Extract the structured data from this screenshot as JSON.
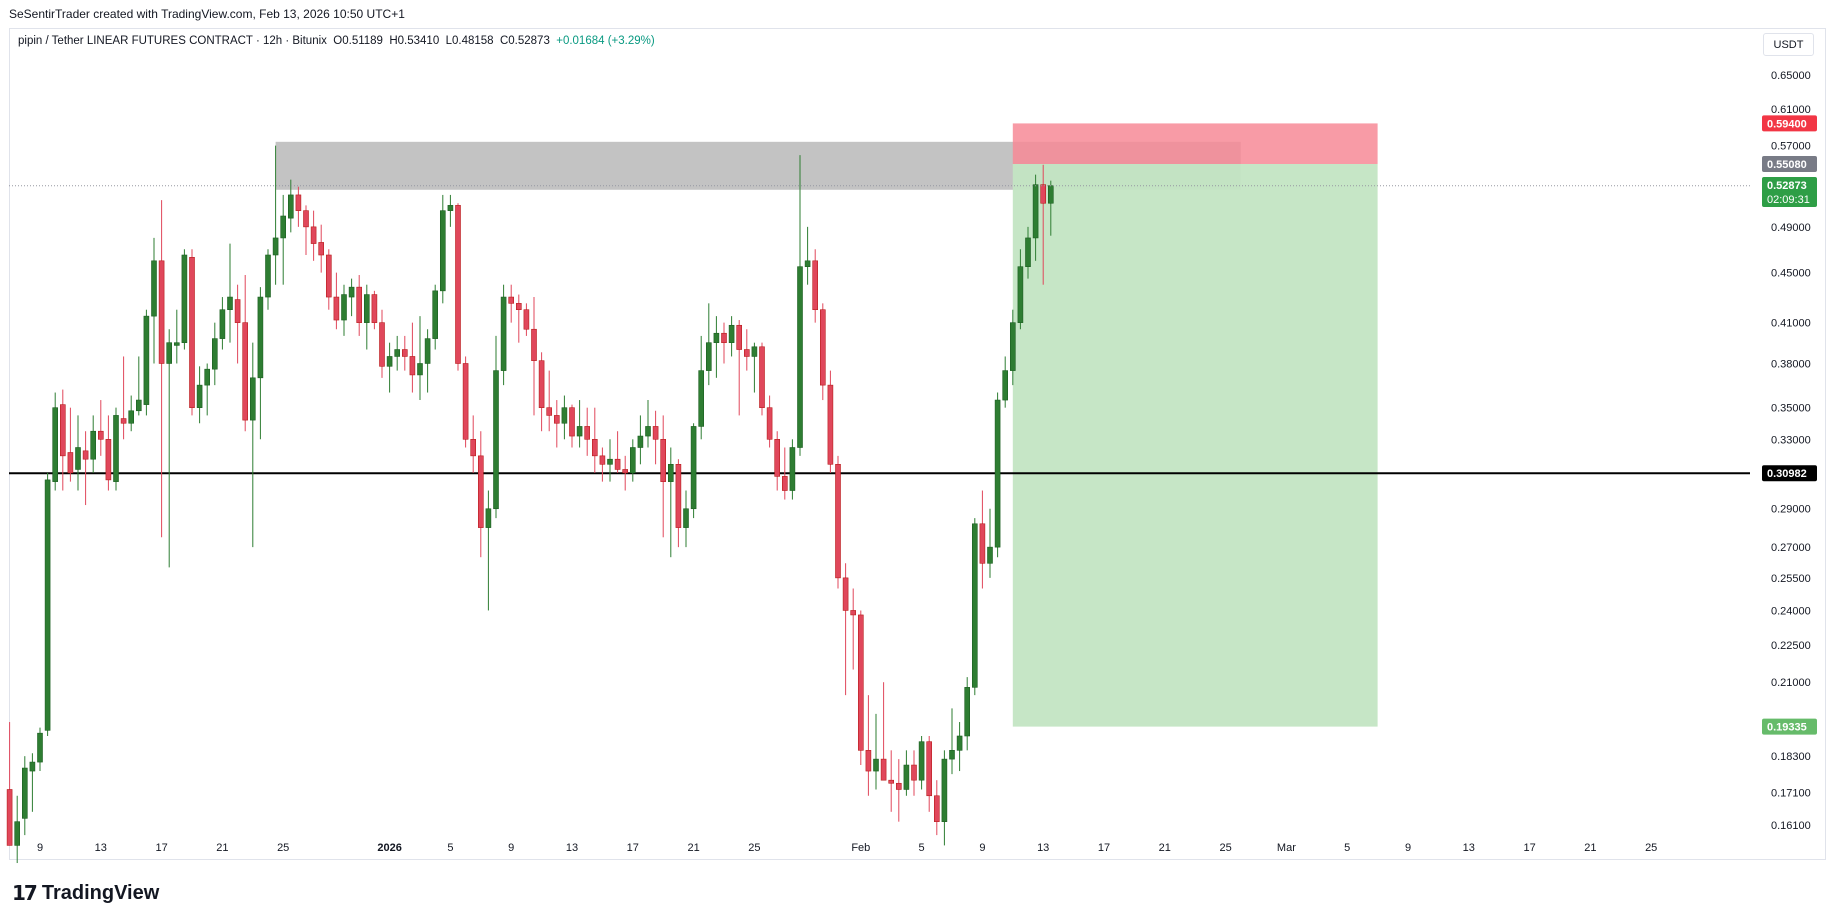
{
  "header": {
    "attribution": "SeSentirTrader created with TradingView.com, Feb 13, 2026 10:50 UTC+1"
  },
  "legend": {
    "symbol": "pipin / Tether LINEAR FUTURES CONTRACT · 12h · Bitunix",
    "open": "O0.51189",
    "high": "H0.53410",
    "low": "L0.48158",
    "close": "C0.52873",
    "change": "+0.01684 (+3.29%)"
  },
  "currency": "USDT",
  "footer": {
    "logo_mark": "17",
    "logo_name": "TradingView"
  },
  "colors": {
    "up": "#089981",
    "down": "#f23645",
    "up_body": "#2e7d32",
    "down_body": "#e0475b",
    "profit_zone": "#c3e5c3",
    "loss_zone": "#f78a96",
    "supply_zone": "#b8b8b8"
  },
  "chart_data": {
    "type": "candlestick",
    "interval": "12h",
    "scale": "log",
    "y_ticks": [
      "0.65000",
      "0.61000",
      "0.57000",
      "0.49000",
      "0.45000",
      "0.41000",
      "0.38000",
      "0.35000",
      "0.33000",
      "0.29000",
      "0.27000",
      "0.25500",
      "0.24000",
      "0.22500",
      "0.21000",
      "0.18300",
      "0.17100",
      "0.16100"
    ],
    "x_ticks": [
      {
        "label": "9",
        "date": "2025-12-09"
      },
      {
        "label": "13",
        "date": "2025-12-13"
      },
      {
        "label": "17",
        "date": "2025-12-17"
      },
      {
        "label": "21",
        "date": "2025-12-21"
      },
      {
        "label": "25",
        "date": "2025-12-25"
      },
      {
        "label": "2026",
        "date": "2026-01-01",
        "bold": true
      },
      {
        "label": "5",
        "date": "2026-01-05"
      },
      {
        "label": "9",
        "date": "2026-01-09"
      },
      {
        "label": "13",
        "date": "2026-01-13"
      },
      {
        "label": "17",
        "date": "2026-01-17"
      },
      {
        "label": "21",
        "date": "2026-01-21"
      },
      {
        "label": "25",
        "date": "2026-01-25"
      },
      {
        "label": "Feb",
        "date": "2026-02-01"
      },
      {
        "label": "5",
        "date": "2026-02-05"
      },
      {
        "label": "9",
        "date": "2026-02-09"
      },
      {
        "label": "13",
        "date": "2026-02-13"
      },
      {
        "label": "17",
        "date": "2026-02-17"
      },
      {
        "label": "21",
        "date": "2026-02-21"
      },
      {
        "label": "25",
        "date": "2026-02-25"
      },
      {
        "label": "Mar",
        "date": "2026-03-01"
      },
      {
        "label": "5",
        "date": "2026-03-05"
      },
      {
        "label": "9",
        "date": "2026-03-09"
      },
      {
        "label": "13",
        "date": "2026-03-13"
      },
      {
        "label": "17",
        "date": "2026-03-17"
      },
      {
        "label": "21",
        "date": "2026-03-21"
      },
      {
        "label": "25",
        "date": "2026-03-25"
      }
    ],
    "first_candle": "2025-12-07 00:00",
    "candles": [
      [
        0.172,
        0.195,
        0.155,
        0.155
      ],
      [
        0.155,
        0.17,
        0.15,
        0.162
      ],
      [
        0.163,
        0.183,
        0.158,
        0.179
      ],
      [
        0.178,
        0.184,
        0.165,
        0.181
      ],
      [
        0.181,
        0.193,
        0.178,
        0.191
      ],
      [
        0.192,
        0.31,
        0.19,
        0.306
      ],
      [
        0.305,
        0.36,
        0.3,
        0.35
      ],
      [
        0.352,
        0.362,
        0.3,
        0.32
      ],
      [
        0.322,
        0.35,
        0.305,
        0.31
      ],
      [
        0.312,
        0.345,
        0.3,
        0.325
      ],
      [
        0.323,
        0.335,
        0.292,
        0.318
      ],
      [
        0.318,
        0.345,
        0.31,
        0.335
      ],
      [
        0.335,
        0.355,
        0.32,
        0.33
      ],
      [
        0.33,
        0.345,
        0.3,
        0.306
      ],
      [
        0.305,
        0.35,
        0.3,
        0.345
      ],
      [
        0.343,
        0.385,
        0.33,
        0.34
      ],
      [
        0.34,
        0.358,
        0.335,
        0.348
      ],
      [
        0.348,
        0.385,
        0.345,
        0.355
      ],
      [
        0.352,
        0.42,
        0.345,
        0.415
      ],
      [
        0.415,
        0.48,
        0.38,
        0.46
      ],
      [
        0.46,
        0.515,
        0.275,
        0.38
      ],
      [
        0.38,
        0.405,
        0.26,
        0.395
      ],
      [
        0.393,
        0.42,
        0.38,
        0.395
      ],
      [
        0.395,
        0.47,
        0.39,
        0.465
      ],
      [
        0.463,
        0.47,
        0.345,
        0.35
      ],
      [
        0.35,
        0.378,
        0.34,
        0.365
      ],
      [
        0.365,
        0.38,
        0.345,
        0.376
      ],
      [
        0.376,
        0.41,
        0.365,
        0.398
      ],
      [
        0.398,
        0.43,
        0.39,
        0.42
      ],
      [
        0.42,
        0.475,
        0.395,
        0.43
      ],
      [
        0.428,
        0.44,
        0.38,
        0.41
      ],
      [
        0.41,
        0.448,
        0.335,
        0.342
      ],
      [
        0.342,
        0.395,
        0.27,
        0.37
      ],
      [
        0.37,
        0.438,
        0.33,
        0.43
      ],
      [
        0.43,
        0.47,
        0.42,
        0.465
      ],
      [
        0.465,
        0.57,
        0.44,
        0.48
      ],
      [
        0.48,
        0.52,
        0.44,
        0.5
      ],
      [
        0.498,
        0.535,
        0.485,
        0.52
      ],
      [
        0.52,
        0.528,
        0.49,
        0.505
      ],
      [
        0.505,
        0.51,
        0.465,
        0.49
      ],
      [
        0.49,
        0.505,
        0.46,
        0.475
      ],
      [
        0.476,
        0.492,
        0.45,
        0.465
      ],
      [
        0.465,
        0.47,
        0.42,
        0.43
      ],
      [
        0.43,
        0.45,
        0.405,
        0.412
      ],
      [
        0.412,
        0.44,
        0.4,
        0.432
      ],
      [
        0.43,
        0.445,
        0.415,
        0.438
      ],
      [
        0.438,
        0.448,
        0.4,
        0.41
      ],
      [
        0.41,
        0.44,
        0.39,
        0.432
      ],
      [
        0.432,
        0.435,
        0.405,
        0.41
      ],
      [
        0.41,
        0.42,
        0.37,
        0.378
      ],
      [
        0.378,
        0.395,
        0.36,
        0.385
      ],
      [
        0.385,
        0.4,
        0.375,
        0.39
      ],
      [
        0.39,
        0.4,
        0.375,
        0.385
      ],
      [
        0.385,
        0.41,
        0.36,
        0.372
      ],
      [
        0.372,
        0.415,
        0.355,
        0.38
      ],
      [
        0.38,
        0.405,
        0.36,
        0.398
      ],
      [
        0.398,
        0.44,
        0.39,
        0.435
      ],
      [
        0.435,
        0.52,
        0.425,
        0.505
      ],
      [
        0.505,
        0.52,
        0.49,
        0.51
      ],
      [
        0.51,
        0.512,
        0.375,
        0.38
      ],
      [
        0.38,
        0.385,
        0.325,
        0.33
      ],
      [
        0.33,
        0.345,
        0.31,
        0.32
      ],
      [
        0.32,
        0.335,
        0.265,
        0.28
      ],
      [
        0.28,
        0.3,
        0.24,
        0.29
      ],
      [
        0.29,
        0.4,
        0.285,
        0.375
      ],
      [
        0.375,
        0.44,
        0.365,
        0.43
      ],
      [
        0.43,
        0.44,
        0.41,
        0.425
      ],
      [
        0.425,
        0.432,
        0.395,
        0.42
      ],
      [
        0.42,
        0.425,
        0.4,
        0.405
      ],
      [
        0.405,
        0.43,
        0.345,
        0.382
      ],
      [
        0.382,
        0.388,
        0.335,
        0.35
      ],
      [
        0.35,
        0.375,
        0.335,
        0.345
      ],
      [
        0.345,
        0.355,
        0.325,
        0.34
      ],
      [
        0.34,
        0.358,
        0.33,
        0.35
      ],
      [
        0.35,
        0.352,
        0.325,
        0.332
      ],
      [
        0.332,
        0.355,
        0.325,
        0.338
      ],
      [
        0.338,
        0.35,
        0.32,
        0.33
      ],
      [
        0.33,
        0.35,
        0.31,
        0.32
      ],
      [
        0.32,
        0.325,
        0.305,
        0.315
      ],
      [
        0.315,
        0.33,
        0.305,
        0.318
      ],
      [
        0.318,
        0.335,
        0.31,
        0.312
      ],
      [
        0.312,
        0.32,
        0.3,
        0.31
      ],
      [
        0.31,
        0.33,
        0.305,
        0.325
      ],
      [
        0.325,
        0.345,
        0.315,
        0.332
      ],
      [
        0.332,
        0.355,
        0.325,
        0.338
      ],
      [
        0.338,
        0.348,
        0.315,
        0.33
      ],
      [
        0.33,
        0.345,
        0.275,
        0.305
      ],
      [
        0.305,
        0.325,
        0.265,
        0.315
      ],
      [
        0.315,
        0.318,
        0.27,
        0.28
      ],
      [
        0.28,
        0.3,
        0.27,
        0.29
      ],
      [
        0.29,
        0.34,
        0.285,
        0.338
      ],
      [
        0.338,
        0.4,
        0.33,
        0.375
      ],
      [
        0.375,
        0.425,
        0.365,
        0.395
      ],
      [
        0.395,
        0.415,
        0.37,
        0.402
      ],
      [
        0.402,
        0.41,
        0.38,
        0.395
      ],
      [
        0.395,
        0.415,
        0.385,
        0.408
      ],
      [
        0.408,
        0.412,
        0.345,
        0.39
      ],
      [
        0.39,
        0.405,
        0.375,
        0.385
      ],
      [
        0.385,
        0.395,
        0.36,
        0.392
      ],
      [
        0.392,
        0.395,
        0.345,
        0.35
      ],
      [
        0.35,
        0.358,
        0.325,
        0.33
      ],
      [
        0.33,
        0.335,
        0.3,
        0.308
      ],
      [
        0.308,
        0.325,
        0.295,
        0.3
      ],
      [
        0.3,
        0.33,
        0.295,
        0.325
      ],
      [
        0.325,
        0.56,
        0.32,
        0.455
      ],
      [
        0.455,
        0.49,
        0.44,
        0.46
      ],
      [
        0.46,
        0.47,
        0.41,
        0.42
      ],
      [
        0.42,
        0.425,
        0.355,
        0.365
      ],
      [
        0.365,
        0.375,
        0.31,
        0.315
      ],
      [
        0.315,
        0.32,
        0.25,
        0.255
      ],
      [
        0.255,
        0.262,
        0.205,
        0.24
      ],
      [
        0.24,
        0.25,
        0.215,
        0.238
      ],
      [
        0.238,
        0.24,
        0.18,
        0.185
      ],
      [
        0.185,
        0.205,
        0.17,
        0.178
      ],
      [
        0.178,
        0.198,
        0.172,
        0.182
      ],
      [
        0.182,
        0.21,
        0.175,
        0.175
      ],
      [
        0.175,
        0.185,
        0.165,
        0.174
      ],
      [
        0.174,
        0.182,
        0.162,
        0.172
      ],
      [
        0.172,
        0.185,
        0.17,
        0.18
      ],
      [
        0.18,
        0.185,
        0.17,
        0.175
      ],
      [
        0.175,
        0.19,
        0.172,
        0.188
      ],
      [
        0.188,
        0.19,
        0.165,
        0.17
      ],
      [
        0.17,
        0.175,
        0.158,
        0.162
      ],
      [
        0.162,
        0.185,
        0.155,
        0.182
      ],
      [
        0.182,
        0.2,
        0.177,
        0.185
      ],
      [
        0.185,
        0.195,
        0.178,
        0.19
      ],
      [
        0.19,
        0.212,
        0.185,
        0.208
      ],
      [
        0.208,
        0.285,
        0.205,
        0.282
      ],
      [
        0.282,
        0.3,
        0.25,
        0.262
      ],
      [
        0.262,
        0.29,
        0.255,
        0.27
      ],
      [
        0.27,
        0.36,
        0.265,
        0.355
      ],
      [
        0.355,
        0.385,
        0.35,
        0.375
      ],
      [
        0.375,
        0.42,
        0.365,
        0.41
      ],
      [
        0.41,
        0.47,
        0.405,
        0.455
      ],
      [
        0.455,
        0.49,
        0.445,
        0.48
      ],
      [
        0.48,
        0.54,
        0.46,
        0.53
      ],
      [
        0.53,
        0.55,
        0.44,
        0.512
      ],
      [
        0.512,
        0.534,
        0.482,
        0.529
      ]
    ],
    "price_labels": [
      {
        "value": "0.59400",
        "role": "stop-loss"
      },
      {
        "value": "0.55080",
        "role": "entry"
      },
      {
        "value": "0.52873",
        "role": "last-price",
        "countdown": "02:09:31"
      },
      {
        "value": "0.30982",
        "role": "horizontal-line"
      },
      {
        "value": "0.19335",
        "role": "take-profit"
      }
    ],
    "supply_zone": {
      "from": "2025-12-24 12:00",
      "to": "2026-02-26 00:00",
      "low": 0.525,
      "high": 0.574
    },
    "position": {
      "side": "short",
      "from": "2026-02-11 00:00",
      "to": "2026-03-07 00:00",
      "entry": 0.5508,
      "stop": 0.594,
      "target": 0.19335
    },
    "horizontal_line": 0.30982
  }
}
